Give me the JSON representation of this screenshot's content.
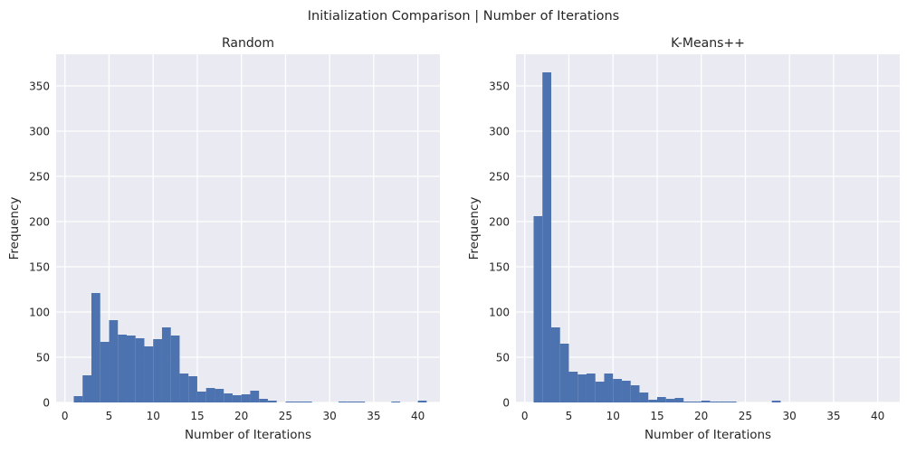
{
  "suptitle": "Initialization Comparison | Number of Iterations",
  "chart_data": [
    {
      "type": "bar",
      "title": "Random",
      "xlabel": "Number of Iterations",
      "ylabel": "Frequency",
      "xlim": [
        -1,
        42.5
      ],
      "ylim": [
        0,
        385
      ],
      "xticks": [
        0,
        5,
        10,
        15,
        20,
        25,
        30,
        35,
        40
      ],
      "yticks": [
        0,
        50,
        100,
        150,
        200,
        250,
        300,
        350
      ],
      "grid": true,
      "bin_edges": [
        1,
        2,
        3,
        4,
        5,
        6,
        7,
        8,
        9,
        10,
        11,
        12,
        13,
        14,
        15,
        16,
        17,
        18,
        19,
        20,
        21,
        22,
        23,
        24,
        25,
        26,
        27,
        28,
        29,
        30,
        31,
        32,
        33,
        34,
        35,
        36,
        37,
        38,
        39,
        40,
        41
      ],
      "values": [
        7,
        30,
        121,
        67,
        91,
        75,
        74,
        71,
        62,
        70,
        83,
        74,
        32,
        29,
        12,
        16,
        15,
        10,
        8,
        9,
        13,
        4,
        2,
        0,
        1,
        1,
        1,
        0,
        0,
        0,
        1,
        1,
        1,
        0,
        0,
        0,
        1,
        0,
        0,
        2
      ],
      "color": "#4c72b0"
    },
    {
      "type": "bar",
      "title": "K-Means++",
      "xlabel": "Number of Iterations",
      "ylabel": "Frequency",
      "xlim": [
        -1,
        42.5
      ],
      "ylim": [
        0,
        385
      ],
      "xticks": [
        0,
        5,
        10,
        15,
        20,
        25,
        30,
        35,
        40
      ],
      "yticks": [
        0,
        50,
        100,
        150,
        200,
        250,
        300,
        350
      ],
      "grid": true,
      "bin_edges": [
        1,
        2,
        3,
        4,
        5,
        6,
        7,
        8,
        9,
        10,
        11,
        12,
        13,
        14,
        15,
        16,
        17,
        18,
        19,
        20,
        21,
        22,
        23,
        24,
        25,
        26,
        27,
        28,
        29
      ],
      "values": [
        206,
        365,
        83,
        65,
        34,
        31,
        32,
        23,
        32,
        26,
        24,
        19,
        11,
        3,
        6,
        4,
        5,
        1,
        1,
        2,
        1,
        1,
        1,
        0,
        0,
        0,
        0,
        2
      ],
      "color": "#4c72b0"
    }
  ]
}
